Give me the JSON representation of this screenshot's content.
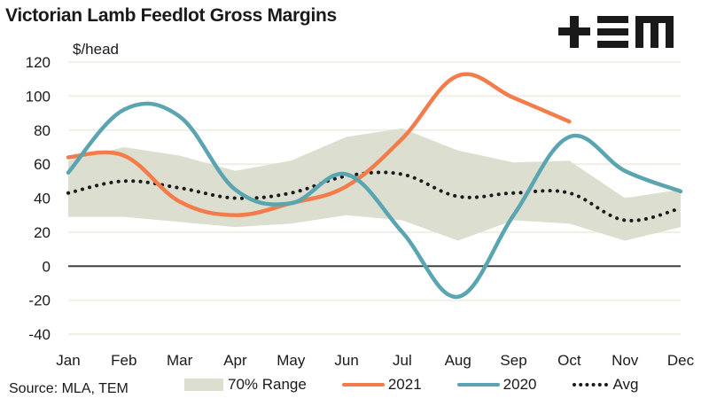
{
  "header": {
    "title": "Victorian Lamb Feedlot Gross Margins",
    "logo_text": "+EM",
    "logo_name": "TEM"
  },
  "footer": {
    "source": "Source: MLA, TEM"
  },
  "colors": {
    "series_2021": "#f47c4a",
    "series_2020": "#5aa5b0",
    "avg": "#1a1a1a",
    "range": "#dcdfd0",
    "gridline": "#efefe6",
    "zero_line": "#404040"
  },
  "chart_data": {
    "type": "line",
    "title": "Victorian Lamb Feedlot Gross Margins",
    "xlabel": "",
    "ylabel": "$/head",
    "ylim": [
      -40,
      120
    ],
    "yticks": [
      120,
      100,
      80,
      60,
      40,
      20,
      0,
      -20,
      -40
    ],
    "grid": true,
    "legend_position": "bottom",
    "categories": [
      "Jan",
      "Feb",
      "Mar",
      "Apr",
      "May",
      "Jun",
      "Jul",
      "Aug",
      "Sep",
      "Oct",
      "Nov",
      "Dec"
    ],
    "range_band": {
      "name": "70% Range",
      "upper": [
        62,
        70,
        65,
        56,
        62,
        76,
        81,
        68,
        61,
        62,
        40,
        45
      ],
      "lower": [
        29,
        29,
        26,
        23,
        25,
        30,
        27,
        15,
        27,
        25,
        15,
        23
      ]
    },
    "series": [
      {
        "name": "2021",
        "style": "solid",
        "values": [
          64,
          65,
          38,
          30,
          37,
          47,
          75,
          112,
          99,
          85,
          null,
          null
        ]
      },
      {
        "name": "2020",
        "style": "solid",
        "values": [
          55,
          92,
          88,
          45,
          37,
          54,
          20,
          -18,
          30,
          76,
          56,
          44
        ]
      },
      {
        "name": "Avg",
        "style": "dotted",
        "values": [
          43,
          50,
          46,
          40,
          43,
          53,
          54,
          41,
          43,
          43,
          27,
          34
        ]
      }
    ],
    "legend": [
      "70% Range",
      "2021",
      "2020",
      "Avg"
    ]
  }
}
